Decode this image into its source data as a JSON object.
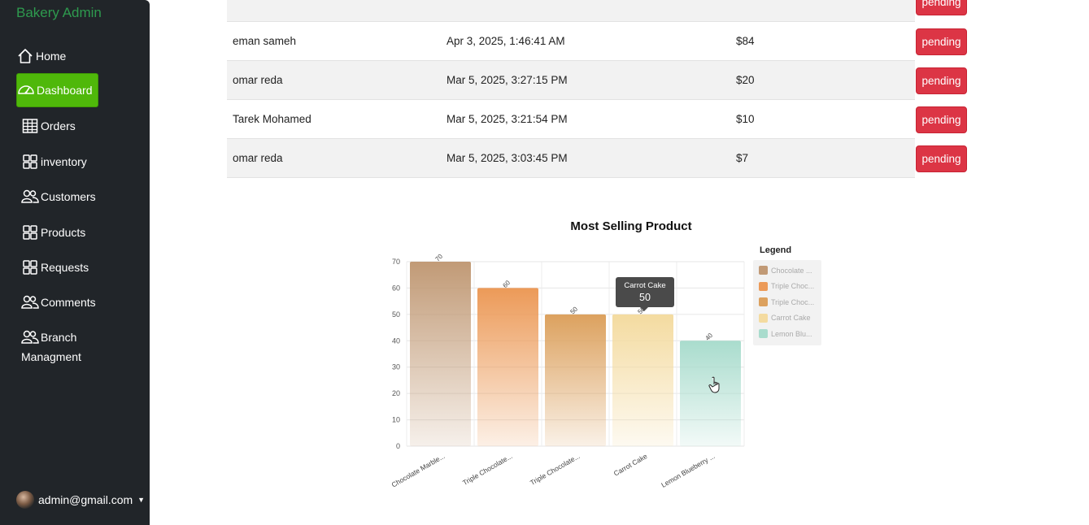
{
  "sidebar": {
    "brand": "Bakery Admin",
    "items": [
      {
        "label": "Home",
        "icon": "home-icon"
      },
      {
        "label": "Dashboard",
        "icon": "speedometer-icon",
        "active": true
      },
      {
        "label": "Orders",
        "icon": "table-icon"
      },
      {
        "label": "inventory",
        "icon": "grid-icon"
      },
      {
        "label": "Customers",
        "icon": "people-icon"
      },
      {
        "label": "Products",
        "icon": "grid-icon"
      },
      {
        "label": "Requests",
        "icon": "grid-icon"
      },
      {
        "label": "Comments",
        "icon": "people-icon"
      }
    ],
    "branch": {
      "line1": "Branch",
      "line2": "Managment",
      "icon": "people-icon"
    },
    "user": {
      "email": "admin@gmail.com"
    },
    "colors": {
      "background": "#212529",
      "brand": "#2e9a4e",
      "active": "#4fb80a"
    }
  },
  "orders": {
    "status_color": "#dc3545",
    "rows": [
      {
        "customer": "eman sameh",
        "date": "Apr 3, 2025, 1:46:41 AM",
        "amount": "$84",
        "status": "pending"
      },
      {
        "customer": "omar reda",
        "date": "Mar 5, 2025, 3:27:15 PM",
        "amount": "$20",
        "status": "pending"
      },
      {
        "customer": "Tarek Mohamed",
        "date": "Mar 5, 2025, 3:21:54 PM",
        "amount": "$10",
        "status": "pending"
      },
      {
        "customer": "omar reda",
        "date": "Mar 5, 2025, 3:03:45 PM",
        "amount": "$7",
        "status": "pending"
      }
    ],
    "partial_top_status": "pending"
  },
  "chart_data": {
    "type": "bar",
    "title": "Most Selling Product",
    "categories": [
      "Chocolate Marble...",
      "Triple Chocolate...",
      "Triple Chocolate...",
      "Carrot Cake",
      "Lemon Blueberry ..."
    ],
    "values": [
      70,
      60,
      50,
      50,
      40
    ],
    "colors": [
      "#c19a76",
      "#ec9a58",
      "#dca15e",
      "#f4dba0",
      "#a9dccd"
    ],
    "ylim": [
      0,
      70
    ],
    "yticks": [
      "0",
      "10",
      "20",
      "30",
      "40",
      "50",
      "60",
      "70"
    ],
    "data_labels": [
      "70",
      "60",
      "50",
      "50",
      "40"
    ],
    "grid": true,
    "legend": {
      "title": "Legend",
      "placement": "right",
      "entries": [
        "Chocolate ...",
        "Triple Choc...",
        "Triple Choc...",
        "Carrot Cake",
        "Lemon Blu..."
      ]
    },
    "tooltip": {
      "label": "Carrot Cake",
      "value": "50"
    }
  }
}
